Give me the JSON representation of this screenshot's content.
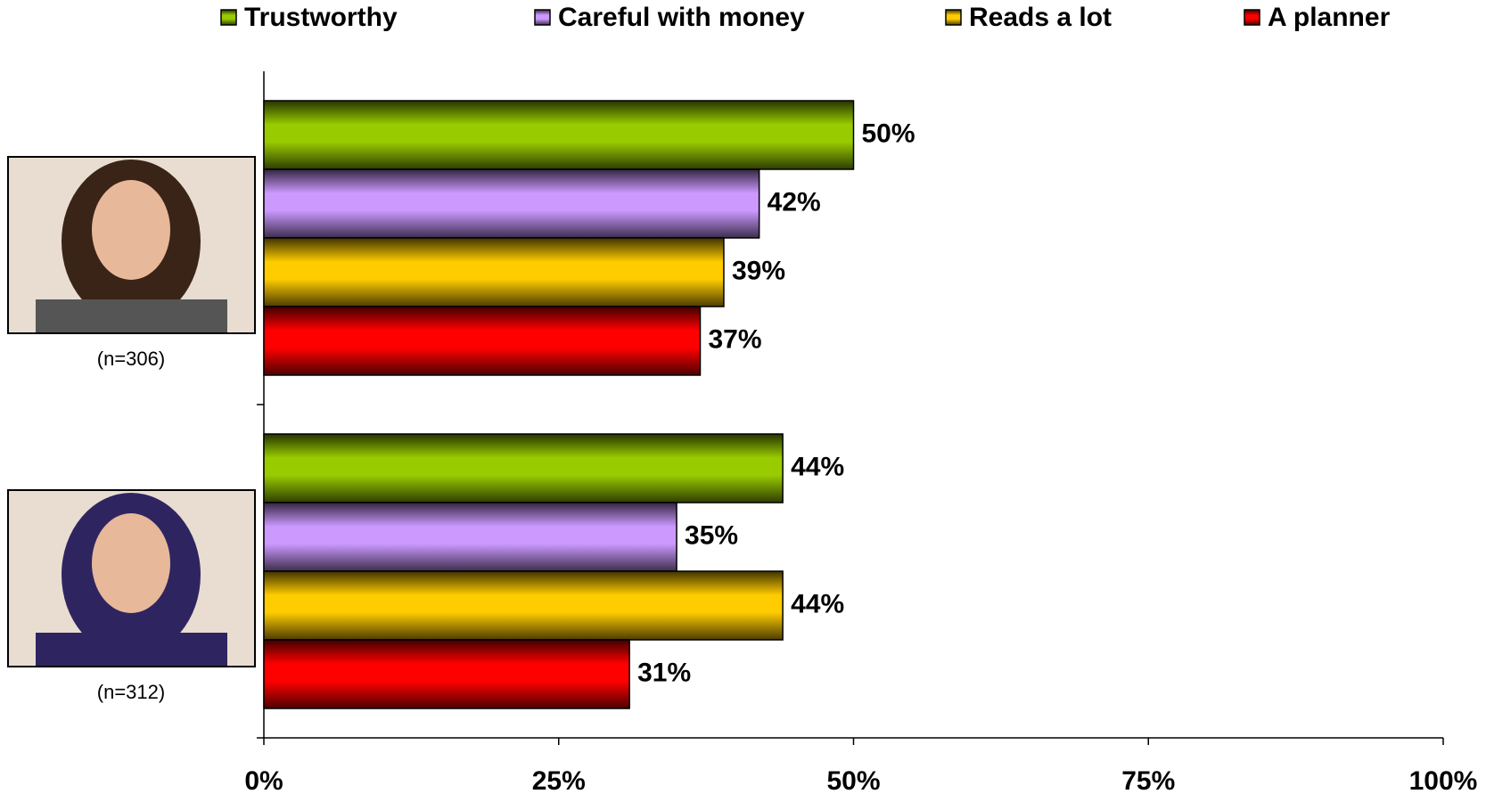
{
  "chart_data": {
    "type": "hbar",
    "categories": [
      "(n=306)",
      "(n=312)"
    ],
    "series": [
      {
        "name": "Trustworthy",
        "color": "#99cc00",
        "values": [
          50,
          44
        ],
        "value_labels": [
          "50%",
          "44%"
        ]
      },
      {
        "name": "Careful with money",
        "color": "#cc99ff",
        "values": [
          42,
          35
        ],
        "value_labels": [
          "42%",
          "35%"
        ]
      },
      {
        "name": "Reads a lot",
        "color": "#ffcc00",
        "values": [
          39,
          44
        ],
        "value_labels": [
          "39%",
          "44%"
        ]
      },
      {
        "name": "A planner",
        "color": "#ff0000",
        "values": [
          37,
          31
        ],
        "value_labels": [
          "37%",
          "31%"
        ]
      }
    ],
    "xlim": [
      0,
      100
    ],
    "xticks": [
      {
        "value": 0,
        "label": "0%"
      },
      {
        "value": 25,
        "label": "25%"
      },
      {
        "value": 50,
        "label": "50%"
      },
      {
        "value": 75,
        "label": "75%"
      },
      {
        "value": 100,
        "label": "100%"
      }
    ],
    "legend": "top"
  }
}
